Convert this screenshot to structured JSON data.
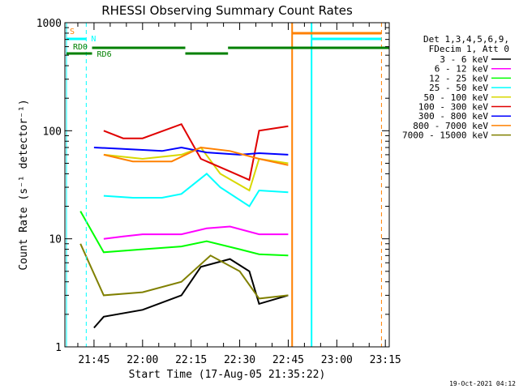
{
  "chart_data": {
    "type": "line",
    "title": "RHESSI Observing Summary Count Rates",
    "xlabel": "Start Time (17-Aug-05 21:35:22)",
    "ylabel": "Count Rate (s⁻¹ detector⁻¹)",
    "yscale": "log",
    "ylim": [
      1,
      1000
    ],
    "y_ticks": [
      "1",
      "10",
      "100",
      "1000"
    ],
    "x_range_minutes": [
      21.6,
      23.27
    ],
    "x_ticks": [
      "21:45",
      "22:00",
      "22:15",
      "22:30",
      "22:45",
      "23:00",
      "23:15"
    ],
    "timestamp": "19-Oct-2021 04:12",
    "legend": {
      "placement": "right",
      "header": [
        "Det 1,3,4,5,6,9,",
        "FDecim 1, Att 0"
      ],
      "entries": [
        {
          "label": "3 - 6 keV",
          "color": "#000000"
        },
        {
          "label": "6 - 12 keV",
          "color": "#ff00ff"
        },
        {
          "label": "12 - 25 keV",
          "color": "#00ff00"
        },
        {
          "label": "25 - 50 keV",
          "color": "#00ffff"
        },
        {
          "label": "50 - 100 keV",
          "color": "#d8d800"
        },
        {
          "label": "100 - 300 keV",
          "color": "#e00000"
        },
        {
          "label": "300 - 800 keV",
          "color": "#0000ff"
        },
        {
          "label": "800 - 7000 keV",
          "color": "#ff8000"
        },
        {
          "label": "7000 - 15000 keV",
          "color": "#808000"
        }
      ]
    },
    "flags": {
      "S_label": "S",
      "N_label": "N",
      "RD0_label": "RD0",
      "RD6_label": "RD6"
    },
    "series": [
      {
        "name": "3 - 6 keV",
        "x": [
          21.75,
          21.8,
          22.0,
          22.2,
          22.3,
          22.45,
          22.55,
          22.6,
          22.75
        ],
        "y": [
          1.5,
          1.9,
          2.2,
          3.0,
          5.5,
          6.5,
          5.0,
          2.5,
          3.0
        ]
      },
      {
        "name": "6 - 12 keV",
        "x": [
          21.8,
          21.9,
          22.0,
          22.2,
          22.33,
          22.45,
          22.6,
          22.75
        ],
        "y": [
          10,
          10.5,
          11,
          11,
          12.5,
          13,
          11,
          11
        ]
      },
      {
        "name": "12 - 25 keV",
        "x": [
          21.68,
          21.8,
          22.0,
          22.2,
          22.33,
          22.5,
          22.6,
          22.75
        ],
        "y": [
          18,
          7.5,
          8,
          8.5,
          9.5,
          8,
          7.2,
          7
        ]
      },
      {
        "name": "25 - 50 keV",
        "x": [
          21.8,
          21.95,
          22.1,
          22.2,
          22.33,
          22.4,
          22.55,
          22.6,
          22.75
        ],
        "y": [
          25,
          24,
          24,
          26,
          40,
          30,
          20,
          28,
          27
        ]
      },
      {
        "name": "50 - 100 keV",
        "x": [
          21.8,
          22.0,
          22.2,
          22.3,
          22.4,
          22.55,
          22.6,
          22.75
        ],
        "y": [
          60,
          55,
          60,
          70,
          40,
          28,
          55,
          50
        ]
      },
      {
        "name": "100 - 300 keV",
        "x": [
          21.8,
          21.9,
          22.0,
          22.2,
          22.3,
          22.45,
          22.55,
          22.6,
          22.75
        ],
        "y": [
          100,
          85,
          85,
          115,
          55,
          42,
          35,
          100,
          110
        ]
      },
      {
        "name": "300 - 800 keV",
        "x": [
          21.75,
          21.9,
          22.1,
          22.2,
          22.33,
          22.5,
          22.6,
          22.75
        ],
        "y": [
          70,
          68,
          65,
          70,
          63,
          60,
          62,
          60
        ]
      },
      {
        "name": "800 - 7000 keV",
        "x": [
          21.8,
          21.95,
          22.15,
          22.3,
          22.45,
          22.6,
          22.75
        ],
        "y": [
          60,
          52,
          52,
          70,
          65,
          55,
          48
        ]
      },
      {
        "name": "7000 - 15000 keV",
        "x": [
          21.68,
          21.8,
          22.0,
          22.2,
          22.35,
          22.5,
          22.6,
          22.75
        ],
        "y": [
          9,
          3.0,
          3.2,
          4.0,
          7.0,
          5.0,
          2.8,
          3.0
        ]
      }
    ]
  }
}
